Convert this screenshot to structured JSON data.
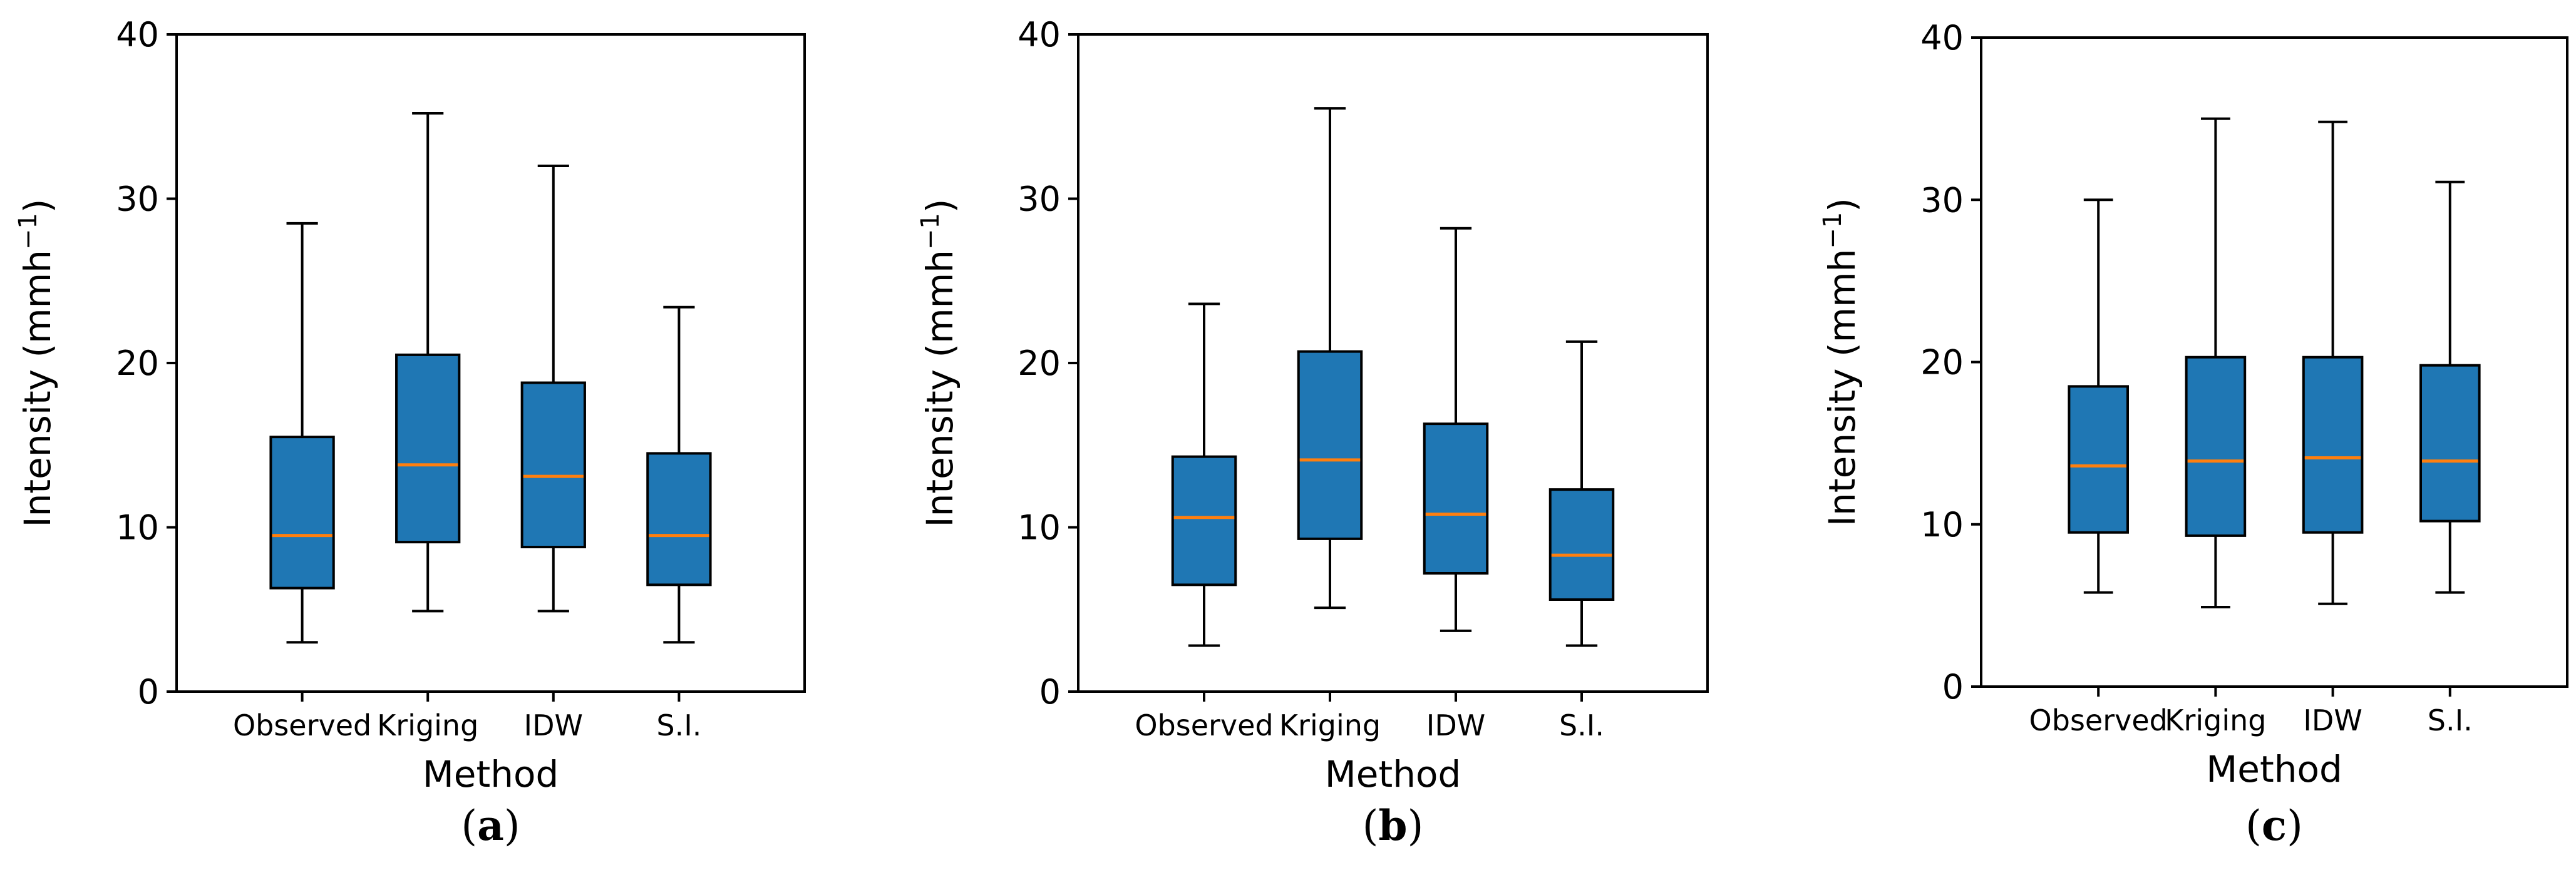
{
  "chart_data": [
    {
      "type": "boxplot",
      "panel_label": "a",
      "xlabel": "Method",
      "ylabel_main": "Intensity (mmh",
      "ylabel_sup": "−1",
      "ylabel_close": ")",
      "ylim": [
        0,
        40
      ],
      "yticks": [
        0,
        10,
        20,
        30,
        40
      ],
      "ytick_labels": [
        "0",
        "10",
        "20",
        "30",
        "40"
      ],
      "categories": [
        "Observed",
        "Kriging",
        "IDW",
        "S.I."
      ],
      "boxes": [
        {
          "whislo": 3.0,
          "q1": 6.3,
          "median": 9.5,
          "q3": 15.5,
          "whishi": 28.5
        },
        {
          "whislo": 4.9,
          "q1": 9.1,
          "median": 13.8,
          "q3": 20.5,
          "whishi": 35.2
        },
        {
          "whislo": 4.9,
          "q1": 8.8,
          "median": 13.1,
          "q3": 18.8,
          "whishi": 32.0
        },
        {
          "whislo": 3.0,
          "q1": 6.5,
          "median": 9.5,
          "q3": 14.5,
          "whishi": 23.4
        }
      ]
    },
    {
      "type": "boxplot",
      "panel_label": "b",
      "xlabel": "Method",
      "ylabel_main": "Intensity (mmh",
      "ylabel_sup": "−1",
      "ylabel_close": ")",
      "ylim": [
        0,
        40
      ],
      "yticks": [
        0,
        10,
        20,
        30,
        40
      ],
      "ytick_labels": [
        "0",
        "10",
        "20",
        "30",
        "40"
      ],
      "categories": [
        "Observed",
        "Kriging",
        "IDW",
        "S.I."
      ],
      "boxes": [
        {
          "whislo": 2.8,
          "q1": 6.5,
          "median": 10.6,
          "q3": 14.3,
          "whishi": 23.6
        },
        {
          "whislo": 5.1,
          "q1": 9.3,
          "median": 14.1,
          "q3": 20.7,
          "whishi": 35.5
        },
        {
          "whislo": 3.7,
          "q1": 7.2,
          "median": 10.8,
          "q3": 16.3,
          "whishi": 28.2
        },
        {
          "whislo": 2.8,
          "q1": 5.6,
          "median": 8.3,
          "q3": 12.3,
          "whishi": 21.3
        }
      ]
    },
    {
      "type": "boxplot",
      "panel_label": "c",
      "xlabel": "Method",
      "ylabel_main": "Intensity (mmh",
      "ylabel_sup": "−1",
      "ylabel_close": ")",
      "ylim": [
        0,
        40
      ],
      "yticks": [
        0,
        10,
        20,
        30,
        40
      ],
      "ytick_labels": [
        "0",
        "10",
        "20",
        "30",
        "40"
      ],
      "categories": [
        "Observed",
        "Kriging",
        "IDW",
        "S.I."
      ],
      "boxes": [
        {
          "whislo": 5.8,
          "q1": 9.5,
          "median": 13.6,
          "q3": 18.5,
          "whishi": 30.0
        },
        {
          "whislo": 4.9,
          "q1": 9.3,
          "median": 13.9,
          "q3": 20.3,
          "whishi": 35.0
        },
        {
          "whislo": 5.1,
          "q1": 9.5,
          "median": 14.1,
          "q3": 20.3,
          "whishi": 34.8
        },
        {
          "whislo": 5.8,
          "q1": 10.2,
          "median": 13.9,
          "q3": 19.8,
          "whishi": 31.1
        }
      ]
    }
  ],
  "colors": {
    "box_fill": "#1f77b4",
    "median_line": "#ff7f0e",
    "stroke": "#000000"
  }
}
